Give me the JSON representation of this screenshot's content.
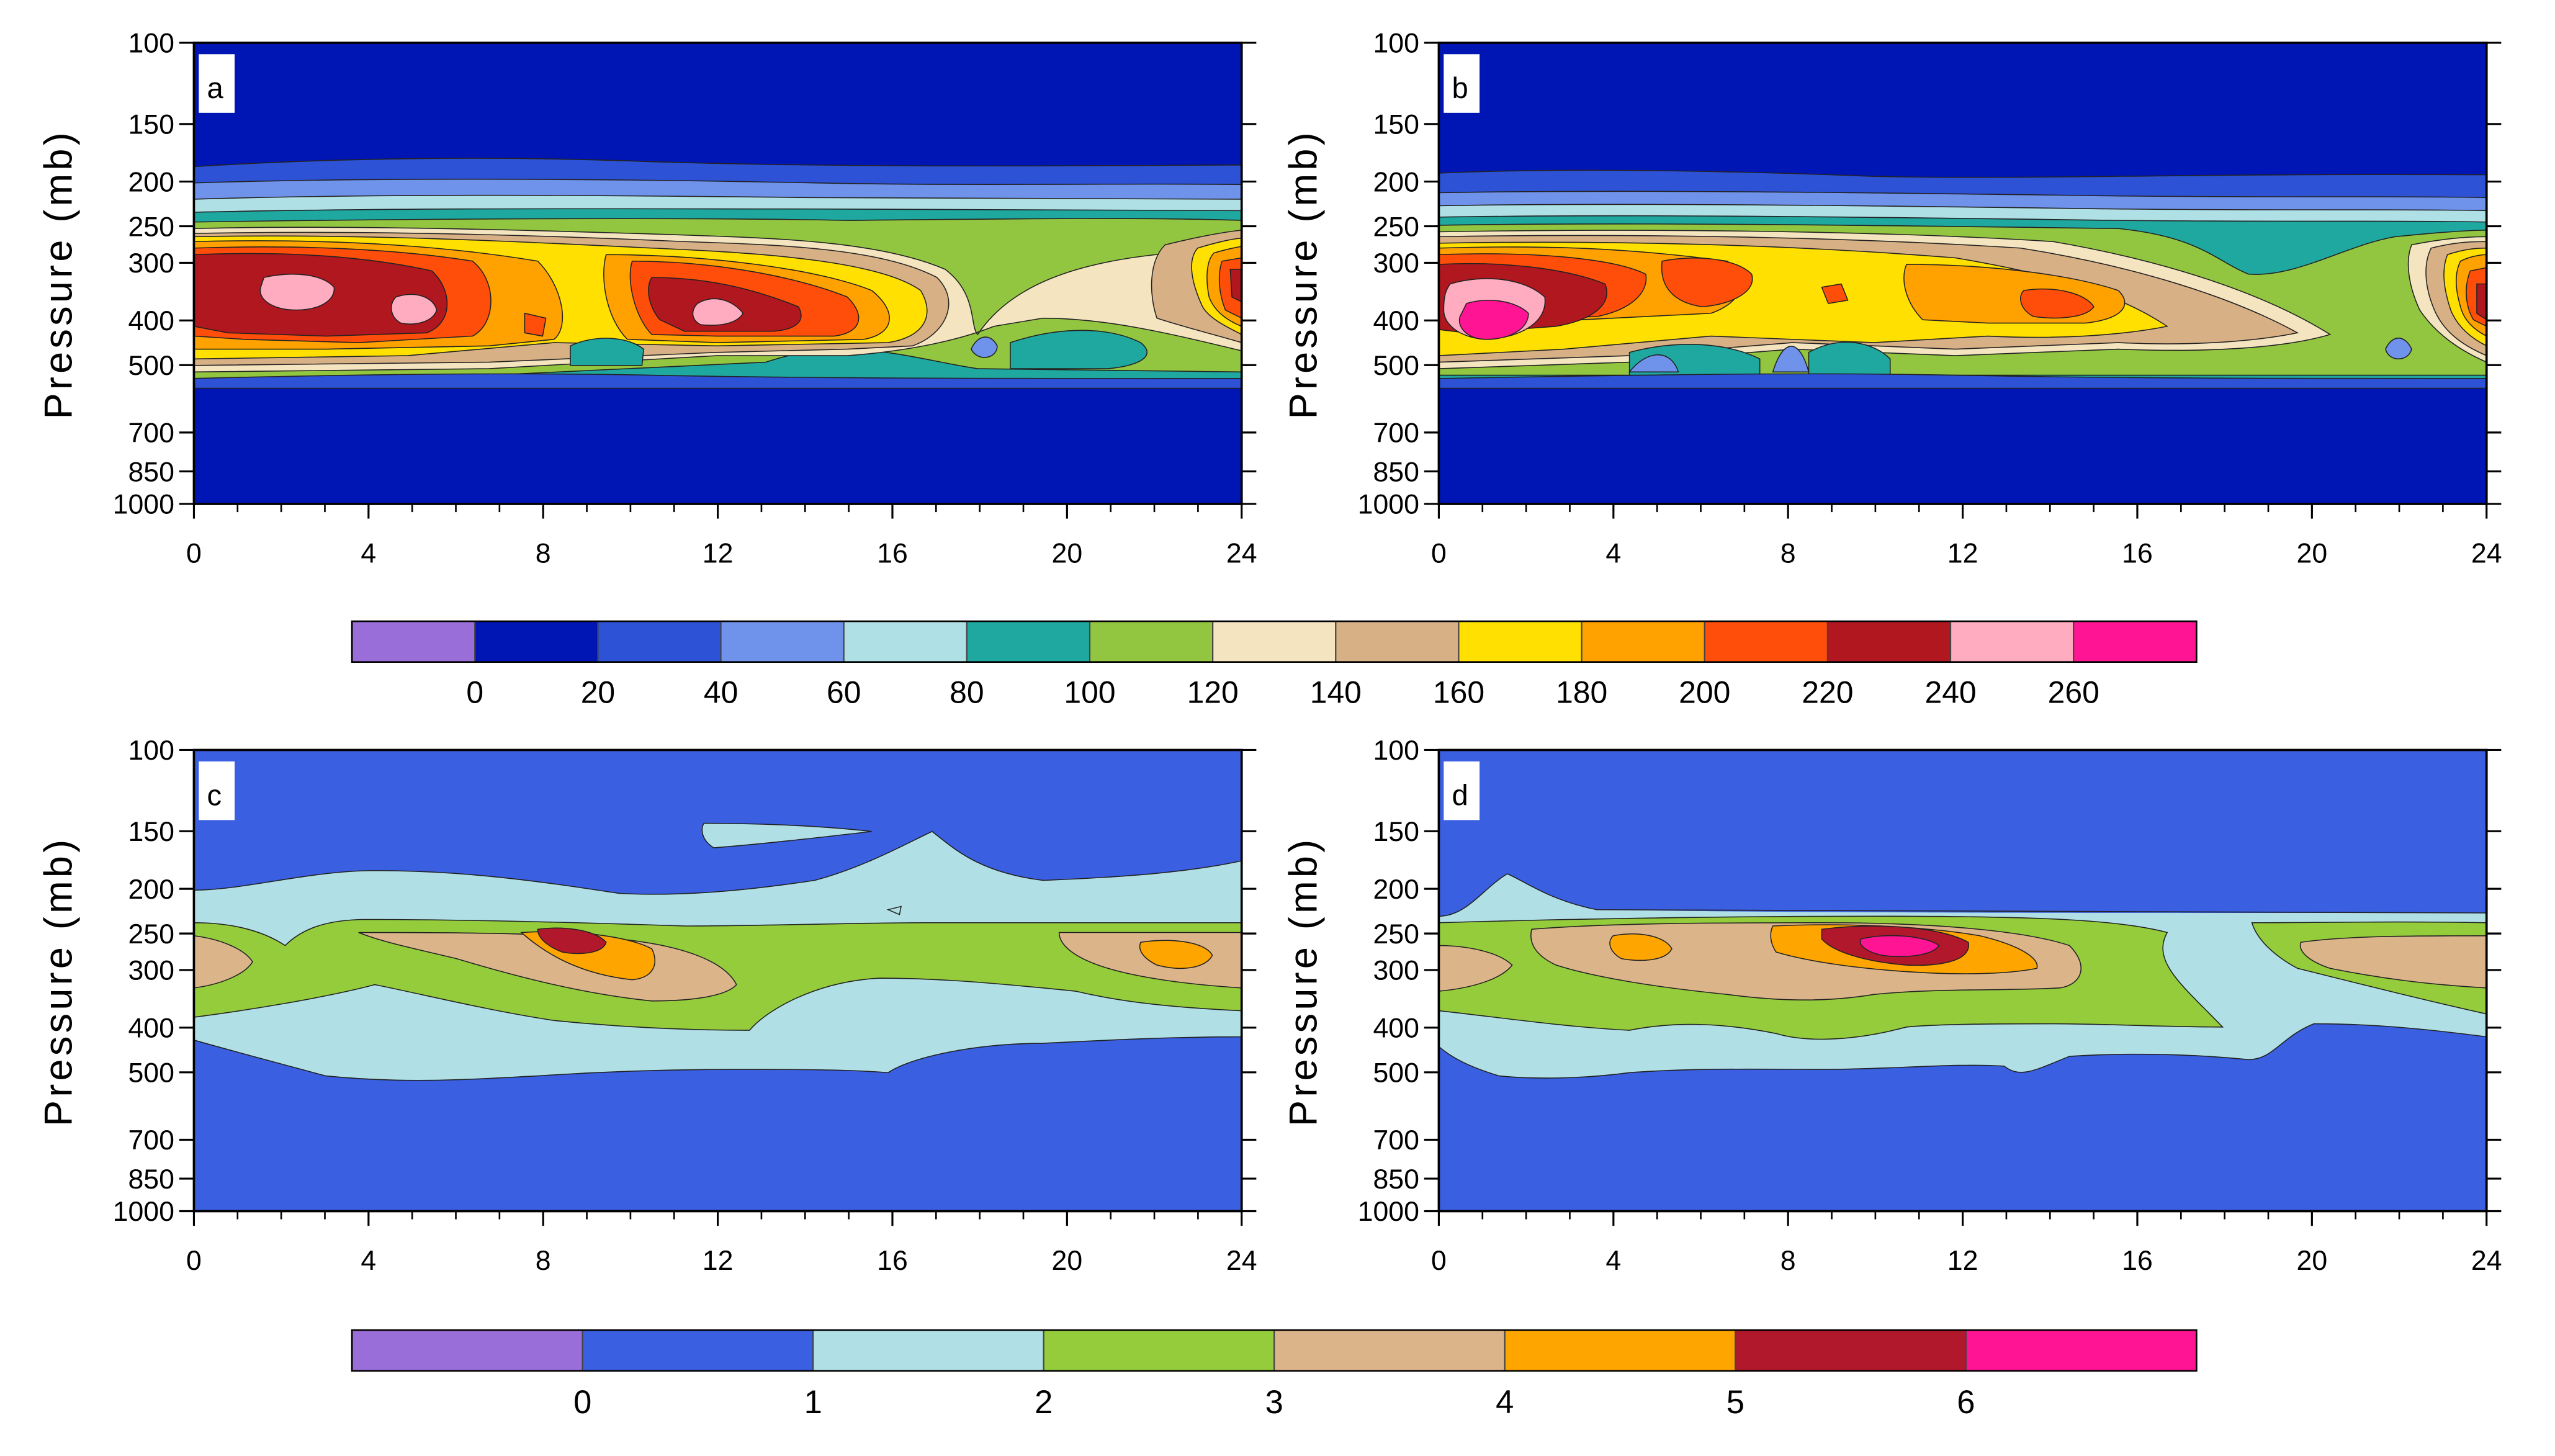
{
  "figure": "Time-pressure cross sections, four panels (a-d)",
  "colorbar_top": {
    "levels": [
      "0",
      "20",
      "40",
      "60",
      "80",
      "100",
      "120",
      "140",
      "160",
      "180",
      "200",
      "220",
      "240",
      "260"
    ],
    "colors": [
      "#9a6ed8",
      "#0016b4",
      "#2d52d6",
      "#6f93ea",
      "#aee0e6",
      "#1fa8a0",
      "#93c640",
      "#f4e4c0",
      "#d8b086",
      "#ffe000",
      "#ffa200",
      "#ff4e0a",
      "#b0171f",
      "#ffacc0",
      "#ff1493"
    ]
  },
  "colorbar_bottom": {
    "levels": [
      "0",
      "1",
      "2",
      "3",
      "4",
      "5",
      "6"
    ],
    "colors": [
      "#9a6ed8",
      "#3a5fe0",
      "#b0e0e6",
      "#94cc3c",
      "#dcb48a",
      "#ffa500",
      "#b2182b",
      "#ff1493"
    ]
  },
  "chart_data": [
    {
      "id": "a",
      "type": "heatmap",
      "panel_label": "a",
      "ylabel": "Pressure (mb)",
      "xlabel": "",
      "xlim": [
        0,
        24
      ],
      "x_ticks": [
        "0",
        "4",
        "8",
        "12",
        "16",
        "20",
        "24"
      ],
      "y_ticks": [
        "100",
        "150",
        "200",
        "250",
        "300",
        "400",
        "500",
        "700",
        "850",
        "1000"
      ],
      "ylim": [
        1000,
        100
      ],
      "background_value_range": "0-20",
      "features": [
        {
          "name": "core",
          "x": 2.5,
          "p": 360,
          "value_range": "240-260+"
        },
        {
          "name": "core",
          "x": 11.8,
          "p": 410,
          "value_range": "240-260+"
        },
        {
          "name": "core",
          "x": 24,
          "p": 350,
          "value_range": "220-240"
        },
        {
          "name": "layer",
          "p_top": 195,
          "p_bottom": 560,
          "value_range": "20-120"
        }
      ]
    },
    {
      "id": "b",
      "type": "heatmap",
      "panel_label": "b",
      "ylabel": "Pressure (mb)",
      "xlabel": "",
      "xlim": [
        0,
        24
      ],
      "x_ticks": [
        "0",
        "4",
        "8",
        "12",
        "16",
        "20",
        "24"
      ],
      "y_ticks": [
        "100",
        "150",
        "200",
        "250",
        "300",
        "400",
        "500",
        "700",
        "850",
        "1000"
      ],
      "ylim": [
        1000,
        100
      ],
      "background_value_range": "0-20",
      "features": [
        {
          "name": "core",
          "x": 1.2,
          "p": 400,
          "value_range": "260+"
        },
        {
          "name": "core",
          "x": 6,
          "p": 340,
          "value_range": "200-220"
        },
        {
          "name": "core",
          "x": 14.5,
          "p": 370,
          "value_range": "200-220"
        },
        {
          "name": "core",
          "x": 24,
          "p": 360,
          "value_range": "220-240"
        },
        {
          "name": "layer",
          "p_top": 200,
          "p_bottom": 560,
          "value_range": "20-120"
        }
      ]
    },
    {
      "id": "c",
      "type": "heatmap",
      "panel_label": "c",
      "ylabel": "Pressure (mb)",
      "xlabel": "",
      "xlim": [
        0,
        24
      ],
      "x_ticks": [
        "0",
        "4",
        "8",
        "12",
        "16",
        "20",
        "24"
      ],
      "y_ticks": [
        "100",
        "150",
        "200",
        "250",
        "300",
        "400",
        "500",
        "700",
        "850",
        "1000"
      ],
      "ylim": [
        1000,
        100
      ],
      "background_value_range": "0-1",
      "features": [
        {
          "name": "core",
          "x": 9,
          "p": 255,
          "value_range": "5-6"
        },
        {
          "name": "core",
          "x": 22.5,
          "p": 275,
          "value_range": "4-5"
        },
        {
          "name": "layer",
          "p_top": 200,
          "p_bottom": 520,
          "value_range": "1-3"
        }
      ]
    },
    {
      "id": "d",
      "type": "heatmap",
      "panel_label": "d",
      "ylabel": "Pressure (mb)",
      "xlabel": "",
      "xlim": [
        0,
        24
      ],
      "x_ticks": [
        "0",
        "4",
        "8",
        "12",
        "16",
        "20",
        "24"
      ],
      "y_ticks": [
        "100",
        "150",
        "200",
        "250",
        "300",
        "400",
        "500",
        "700",
        "850",
        "1000"
      ],
      "ylim": [
        1000,
        100
      ],
      "background_value_range": "0-1",
      "features": [
        {
          "name": "core",
          "x": 10.5,
          "p": 270,
          "value_range": "6+"
        },
        {
          "name": "core",
          "x": 4.8,
          "p": 265,
          "value_range": "4-5"
        },
        {
          "name": "layer",
          "p_top": 225,
          "p_bottom": 520,
          "value_range": "1-3"
        }
      ]
    }
  ]
}
